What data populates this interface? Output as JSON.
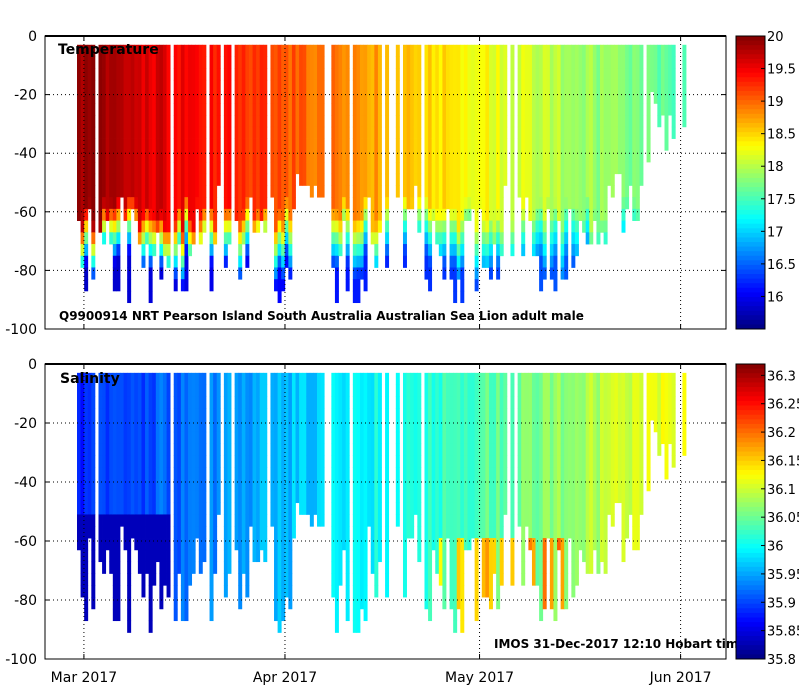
{
  "figure": {
    "subtitle": "Q9900914 NRT Pearson Island South Australia Australian Sea Lion adult male",
    "footer": "IMOS 31-Dec-2017 12:10 Hobart time"
  },
  "chart_data": [
    {
      "type": "heatmap",
      "title": "Temperature",
      "xlabel": "",
      "ylabel": "",
      "ylim": [
        -100,
        0
      ],
      "yticks": [
        0,
        -20,
        -40,
        -60,
        -80,
        -100
      ],
      "xlim": [
        "2017-02-23",
        "2017-06-08"
      ],
      "xticks": [
        {
          "date": "2017-03-01",
          "label": "Mar 2017"
        },
        {
          "date": "2017-04-01",
          "label": "Apr 2017"
        },
        {
          "date": "2017-05-01",
          "label": "May 2017"
        },
        {
          "date": "2017-06-01",
          "label": "Jun 2017"
        }
      ],
      "colorbar": {
        "range": [
          15.5,
          20.0
        ],
        "ticks": [
          20,
          19.5,
          19,
          18.5,
          18,
          17.5,
          17,
          16.5,
          16
        ],
        "colormap": "jet"
      },
      "grid": true,
      "profiles_surface_to_max_depth": "vertical dive profiles from ~-3 m to 45-98 m between late Feb and early Jun 2017; surface warm (~19-20) in Mar cooling to ~17.5-18 by Jun; colder (~15.5-17) water below ~60 m"
    },
    {
      "type": "heatmap",
      "title": "Salinity",
      "xlabel": "",
      "ylabel": "",
      "ylim": [
        -100,
        0
      ],
      "yticks": [
        0,
        -20,
        -40,
        -60,
        -80,
        -100
      ],
      "xlim": [
        "2017-02-23",
        "2017-06-08"
      ],
      "xticks": [
        {
          "date": "2017-03-01",
          "label": "Mar 2017"
        },
        {
          "date": "2017-04-01",
          "label": "Apr 2017"
        },
        {
          "date": "2017-05-01",
          "label": "May 2017"
        },
        {
          "date": "2017-06-01",
          "label": "Jun 2017"
        }
      ],
      "colorbar": {
        "range": [
          35.8,
          36.32
        ],
        "ticks": [
          36.3,
          36.25,
          36.2,
          36.15,
          36.1,
          36.05,
          36,
          35.95,
          35.9,
          35.85,
          35.8
        ],
        "colormap": "jet"
      },
      "grid": true,
      "profiles_surface_to_max_depth": "salinity ~35.85-35.95 in early Mar rising to ~36.0-36.1 by May-Jun; patches of ~36.15-36.3 around 60-80 m in late Apr-May"
    }
  ]
}
